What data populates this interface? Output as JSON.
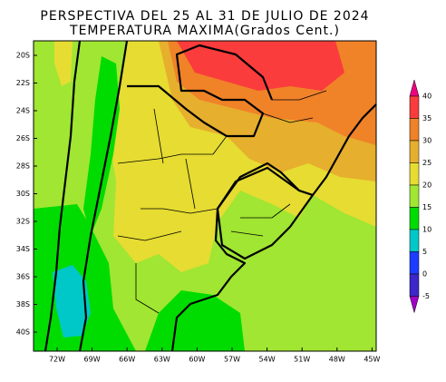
{
  "title": [
    "PERSPECTIVA DEL 25 AL 31 DE JULIO DE 2024",
    "TEMPERATURA MAXIMA(Grados Cent.)"
  ],
  "latitude_labels": [
    "20S",
    "22S",
    "24S",
    "26S",
    "28S",
    "30S",
    "32S",
    "34S",
    "36S",
    "38S",
    "40S"
  ],
  "longitude_labels": [
    "72W",
    "69W",
    "66W",
    "63W",
    "60W",
    "57W",
    "54W",
    "51W",
    "48W",
    "45W"
  ],
  "colorbar_labels": [
    40,
    35,
    30,
    25,
    20,
    15,
    10,
    5,
    0,
    -5
  ]
}
